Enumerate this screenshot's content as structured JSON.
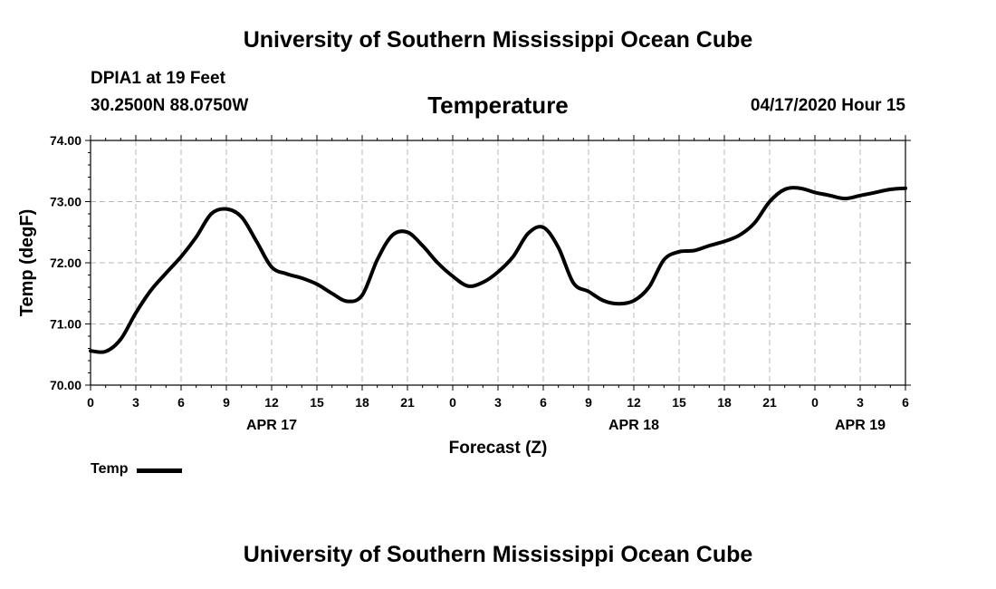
{
  "header": {
    "title": "University of Southern Mississippi Ocean Cube",
    "station": "DPIA1 at 19 Feet",
    "coords": "30.2500N 88.0750W",
    "datetime": "04/17/2020 Hour 15"
  },
  "footer": {
    "title": "University of Southern Mississippi Ocean Cube"
  },
  "legend": {
    "label": "Temp",
    "color": "#000000"
  },
  "chart_data": {
    "type": "line",
    "title": "Temperature",
    "xlabel": "Forecast (Z)",
    "ylabel": "Temp (degF)",
    "xlim": [
      0,
      54
    ],
    "ylim": [
      70.0,
      74.0
    ],
    "grid": true,
    "y_ticks": [
      "70.00",
      "71.00",
      "72.00",
      "73.00",
      "74.00"
    ],
    "x_tick_labels": [
      "0",
      "3",
      "6",
      "9",
      "12",
      "15",
      "18",
      "21",
      "0",
      "3",
      "6",
      "9",
      "12",
      "15",
      "18",
      "21",
      "0",
      "3",
      "6"
    ],
    "date_labels": [
      {
        "x": 12,
        "label": "APR 17"
      },
      {
        "x": 36,
        "label": "APR 18"
      },
      {
        "x": 51,
        "label": "APR 19"
      }
    ],
    "series": [
      {
        "name": "Temp",
        "x": [
          0,
          1,
          2,
          3,
          4,
          5,
          6,
          7,
          8,
          9,
          10,
          11,
          12,
          13,
          14,
          15,
          16,
          17,
          18,
          19,
          20,
          21,
          22,
          23,
          24,
          25,
          26,
          27,
          28,
          29,
          30,
          31,
          32,
          33,
          34,
          35,
          36,
          37,
          38,
          39,
          40,
          41,
          42,
          43,
          44,
          45,
          46,
          47,
          48,
          49,
          50,
          51,
          52,
          53,
          54
        ],
        "values": [
          70.56,
          70.55,
          70.75,
          71.18,
          71.55,
          71.83,
          72.1,
          72.42,
          72.8,
          72.88,
          72.75,
          72.35,
          71.93,
          71.82,
          71.75,
          71.65,
          71.5,
          71.37,
          71.47,
          72.05,
          72.45,
          72.5,
          72.28,
          72.0,
          71.78,
          71.62,
          71.68,
          71.85,
          72.1,
          72.48,
          72.58,
          72.25,
          71.67,
          71.53,
          71.38,
          71.33,
          71.38,
          71.6,
          72.05,
          72.18,
          72.2,
          72.28,
          72.35,
          72.45,
          72.65,
          73.0,
          73.2,
          73.22,
          73.15,
          73.1,
          73.05,
          73.1,
          73.15,
          73.2,
          73.22
        ]
      }
    ]
  }
}
